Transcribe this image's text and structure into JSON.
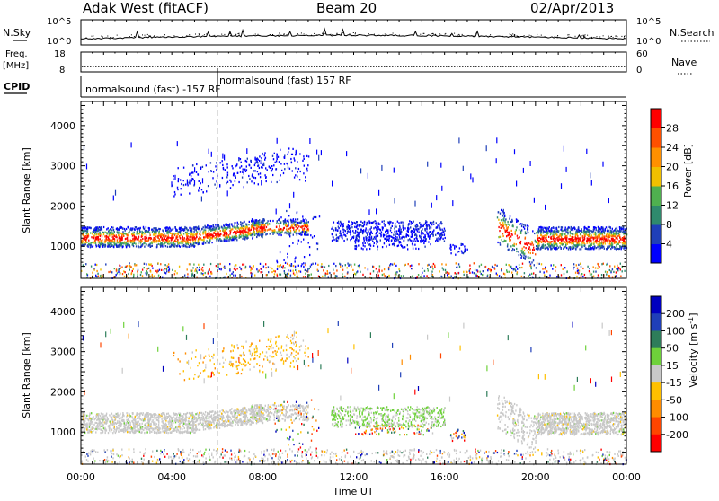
{
  "header": {
    "station": "Adak West (fitACF)",
    "beam": "Beam 20",
    "date": "02/Apr/2013"
  },
  "left_labels": {
    "nsky": "N.Sky",
    "freq": "Freq.",
    "freq_unit": "[MHz]",
    "cpid": "CPID"
  },
  "right_labels": {
    "nsearch": "N.Search",
    "nave": "Nave"
  },
  "noise_panel": {
    "left_ticks": [
      "10^5",
      "10^0"
    ],
    "right_ticks": [
      "10^5",
      "10^0"
    ]
  },
  "freq_panel": {
    "left_ticks": [
      "18",
      "8"
    ],
    "right_ticks": [
      "60",
      "0"
    ]
  },
  "cpid_panel": {
    "entries": [
      {
        "label": "normalsound (fast) -157 RF",
        "start": "00:00"
      },
      {
        "label": "normalsound (fast) 157 RF",
        "start": "06:00"
      }
    ]
  },
  "chart_data": [
    {
      "type": "heatmap",
      "title": "",
      "xlabel": "Time UT",
      "ylabel": "Slant Range [km]",
      "colorbar_label": "Power [dB]",
      "colorbar_ticks": [
        4,
        8,
        12,
        16,
        20,
        24,
        28
      ],
      "yticks": [
        1000,
        2000,
        3000,
        4000
      ],
      "ylim": [
        200,
        4600
      ],
      "xlim": [
        "00:00",
        "24:00"
      ],
      "features": [
        {
          "name": "main band",
          "time": [
            "00:00",
            "10:00"
          ],
          "range_km": [
            1000,
            1600
          ],
          "power_db": [
            8,
            24
          ]
        },
        {
          "name": "main band",
          "time": [
            "11:00",
            "16:00"
          ],
          "range_km": [
            1100,
            1600
          ],
          "power_db": [
            4,
            8
          ]
        },
        {
          "name": "main band",
          "time": [
            "18:30",
            "24:00"
          ],
          "range_km": [
            900,
            1600
          ],
          "power_db": [
            8,
            28
          ]
        },
        {
          "name": "upper arc",
          "time": [
            "04:00",
            "10:00"
          ],
          "range_km": [
            2200,
            3300
          ],
          "power_db": [
            4,
            8
          ]
        },
        {
          "name": "near range clutter",
          "time": [
            "00:00",
            "24:00"
          ],
          "range_km": [
            200,
            600
          ],
          "power_db": [
            4,
            28
          ]
        }
      ]
    },
    {
      "type": "heatmap",
      "title": "",
      "xlabel": "Time UT",
      "ylabel": "Slant Range [km]",
      "colorbar_label": "Velocity [m s^-1]",
      "colorbar_ticks": [
        200,
        100,
        50,
        15,
        -15,
        -50,
        -100,
        -200
      ],
      "yticks": [
        1000,
        2000,
        3000,
        4000
      ],
      "ylim": [
        200,
        4600
      ],
      "xticks": [
        "00:00",
        "04:00",
        "08:00",
        "12:00",
        "16:00",
        "20:00",
        "00:00"
      ],
      "features": [
        {
          "name": "main band",
          "time": [
            "00:00",
            "10:00"
          ],
          "range_km": [
            1000,
            1600
          ],
          "velocity": [
            -15,
            15
          ]
        },
        {
          "name": "main band",
          "time": [
            "11:00",
            "16:00"
          ],
          "range_km": [
            1100,
            1600
          ],
          "velocity": [
            15,
            50
          ]
        },
        {
          "name": "main band",
          "time": [
            "18:30",
            "24:00"
          ],
          "range_km": [
            900,
            1600
          ],
          "velocity": [
            -15,
            15
          ]
        },
        {
          "name": "upper arc",
          "time": [
            "04:00",
            "10:00"
          ],
          "range_km": [
            2200,
            3300
          ],
          "velocity": [
            -50,
            -15
          ]
        }
      ]
    }
  ]
}
